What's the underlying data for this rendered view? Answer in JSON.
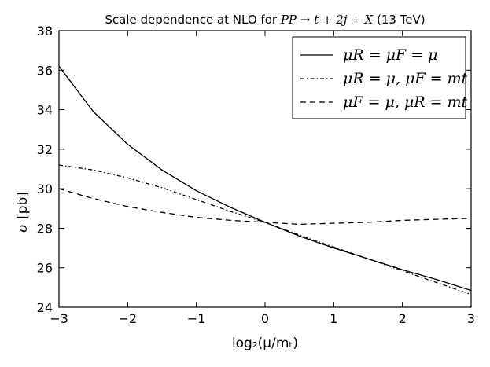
{
  "chart_data": {
    "type": "line",
    "title_prefix": "Scale dependence at NLO for ",
    "title_process": "PP → t + 2j + X",
    "title_suffix": " (13 TeV)",
    "xlabel": "log₂(μ/mₜ)",
    "ylabel_symbol": "σ",
    "ylabel_unit": " [pb]",
    "xlim": [
      -3,
      3
    ],
    "ylim": [
      24,
      38
    ],
    "xticks": [
      -3,
      -2,
      -1,
      0,
      1,
      2,
      3
    ],
    "yticks": [
      24,
      26,
      28,
      30,
      32,
      34,
      36,
      38
    ],
    "grid": false,
    "legend_position": "top-right",
    "series": [
      {
        "name": "μR = μF = μ",
        "style": "solid",
        "x": [
          -3,
          -2.5,
          -2,
          -1.5,
          -1,
          -0.5,
          0,
          0.5,
          1,
          1.5,
          2,
          2.5,
          3
        ],
        "y": [
          36.2,
          33.9,
          32.25,
          30.95,
          29.9,
          29.05,
          28.3,
          27.6,
          27.0,
          26.45,
          25.9,
          25.4,
          24.85
        ]
      },
      {
        "name": "μR = μ, μF = mt",
        "style": "dashdot",
        "x": [
          -3,
          -2.5,
          -2,
          -1.5,
          -1,
          -0.5,
          0,
          0.5,
          1,
          1.5,
          2,
          2.5,
          3
        ],
        "y": [
          31.2,
          30.95,
          30.55,
          30.05,
          29.45,
          28.85,
          28.3,
          27.65,
          27.05,
          26.45,
          25.85,
          25.25,
          24.65
        ]
      },
      {
        "name": "μF = μ, μR = mt",
        "style": "dashed",
        "x": [
          -3,
          -2.5,
          -2,
          -1.5,
          -1,
          -0.5,
          0,
          0.5,
          1,
          1.5,
          2,
          2.5,
          3
        ],
        "y": [
          30.0,
          29.5,
          29.1,
          28.8,
          28.55,
          28.4,
          28.3,
          28.2,
          28.25,
          28.3,
          28.4,
          28.45,
          28.5
        ]
      }
    ]
  }
}
